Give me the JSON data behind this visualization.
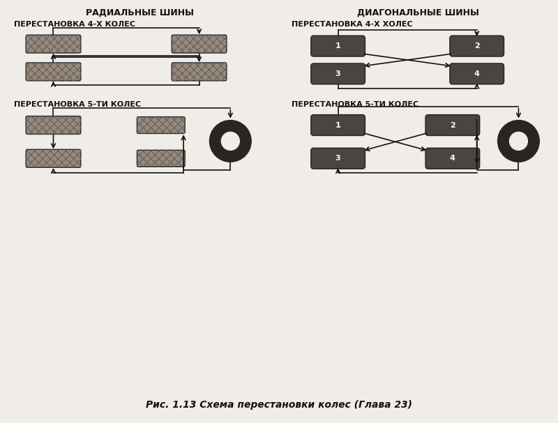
{
  "bg_color": "#f0ede8",
  "title_radial": "РАДИАЛЬНЫЕ ШИНЫ",
  "title_diagonal": "ДИАГОНАЛЬНЫЕ ШИНЫ",
  "sub_title_4_radial": "ПЕРЕСТАНОВКА 4-Х КОЛЕС",
  "sub_title_4_diagonal": "ПЕРЕСТАНОВКА 4-Х ХОЛЕС",
  "sub_title_5_radial": "ПЕРЕСТАНОВКА 5-ТИ КОЛЕС",
  "sub_title_5_diagonal": "ПЕРЕСТАНОВКА 5-ТИ КОЛЕС",
  "caption": "Рис. 1.13 Схема перестановки колес (Глава 23)",
  "tire_light_color": "#9a8878",
  "tire_dark_color": "#4a4540",
  "spare_color": "#2a2520",
  "arrow_color": "#111111",
  "line_color": "#111111",
  "text_color": "#111111",
  "label_color": "#ffffff"
}
